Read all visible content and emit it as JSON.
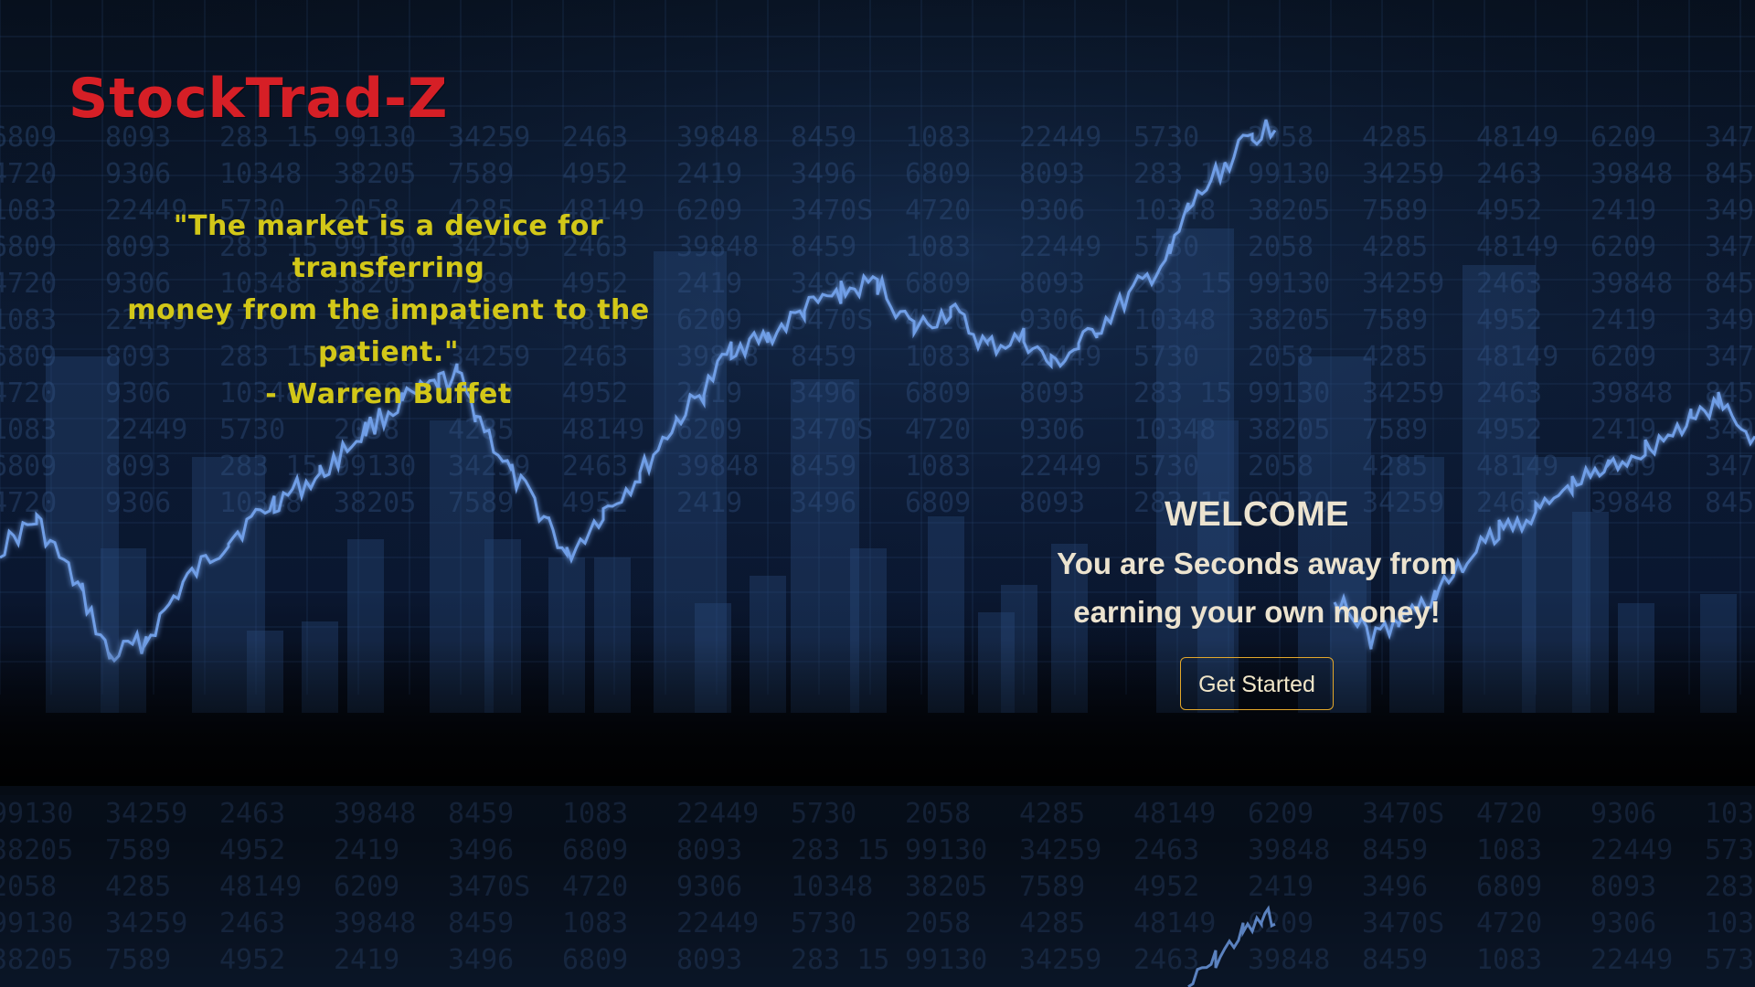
{
  "brand": {
    "name": "StockTrad-Z",
    "color": "#d61f26"
  },
  "quote": {
    "line1": "\"The market is a device for transferring",
    "line2": "money from the impatient to the",
    "line3": "patient.\"",
    "author": "- Warren Buffet",
    "color": "#d2c718"
  },
  "hero": {
    "title": "WELCOME",
    "subtitle_line1": "You are Seconds away from",
    "subtitle_line2": "earning your own money!",
    "cta_label": "Get Started",
    "cta_border_color": "#e3a72a"
  },
  "background": {
    "description_icon": "stock-chart-background",
    "ticker_numbers": [
      "6809",
      "8093",
      "283 15",
      "99130",
      "34259",
      "2463",
      "39848",
      "8459",
      "1083",
      "22449",
      "5730",
      "2058",
      "4285",
      "48149",
      "6209",
      "3470S",
      "4720",
      "9306",
      "10348",
      "38205",
      "7589",
      "4952",
      "2419",
      "3496"
    ]
  }
}
